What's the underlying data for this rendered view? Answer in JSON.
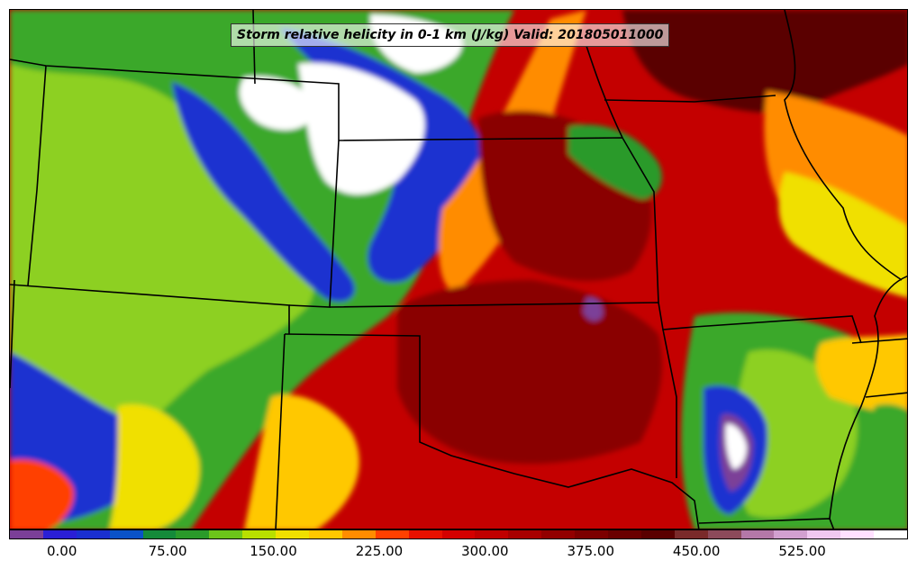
{
  "title": "Storm relative helicity in 0-1 km (J/kg) Valid: 201805011000",
  "colorbar": {
    "colors": [
      "#7b3f98",
      "#2a1fd6",
      "#1a2fd0",
      "#0a52c8",
      "#148a3a",
      "#2a9a2a",
      "#6cc51a",
      "#b8e000",
      "#f0e000",
      "#ffc800",
      "#ff8c00",
      "#ff4000",
      "#e81000",
      "#d40000",
      "#c00000",
      "#a80000",
      "#920000",
      "#7c0000",
      "#6a0000",
      "#5a0000",
      "#7a2a2a",
      "#8c4a5a",
      "#b478a8",
      "#d2a0d0",
      "#f0c8f0",
      "#ffe0ff",
      "#ffffff"
    ],
    "tick_labels": [
      "0.00",
      "75.00",
      "150.00",
      "225.00",
      "300.00",
      "375.00",
      "450.00",
      "525.00"
    ],
    "tick_values": [
      0,
      75,
      150,
      225,
      300,
      375,
      450,
      525
    ],
    "min": -37.5,
    "max": 600
  }
}
